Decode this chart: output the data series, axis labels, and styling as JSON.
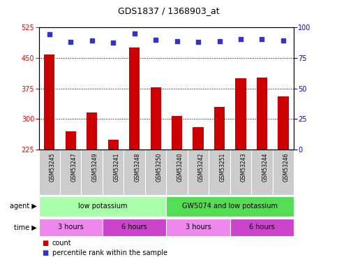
{
  "title": "GDS1837 / 1368903_at",
  "categories": [
    "GSM53245",
    "GSM53247",
    "GSM53249",
    "GSM53241",
    "GSM53248",
    "GSM53250",
    "GSM53240",
    "GSM53242",
    "GSM53251",
    "GSM53243",
    "GSM53244",
    "GSM53246"
  ],
  "bar_values": [
    458,
    270,
    315,
    248,
    475,
    378,
    308,
    280,
    330,
    400,
    402,
    355
  ],
  "percentile_values": [
    508,
    490,
    493,
    487,
    510,
    495,
    491,
    490,
    492,
    496,
    496,
    493
  ],
  "ylim_left": [
    225,
    525
  ],
  "ylim_right": [
    0,
    100
  ],
  "yticks_left": [
    225,
    300,
    375,
    450,
    525
  ],
  "yticks_right": [
    0,
    25,
    50,
    75,
    100
  ],
  "bar_color": "#cc0000",
  "dot_color": "#3333cc",
  "grid_lines": [
    300,
    375,
    450
  ],
  "agent_groups": [
    {
      "label": "low potassium",
      "start": 0,
      "end": 6,
      "color": "#aaffaa"
    },
    {
      "label": "GW5074 and low potassium",
      "start": 6,
      "end": 12,
      "color": "#55dd55"
    }
  ],
  "time_groups": [
    {
      "label": "3 hours",
      "start": 0,
      "end": 3,
      "color": "#ee88ee"
    },
    {
      "label": "6 hours",
      "start": 3,
      "end": 6,
      "color": "#cc44cc"
    },
    {
      "label": "3 hours",
      "start": 6,
      "end": 9,
      "color": "#ee88ee"
    },
    {
      "label": "6 hours",
      "start": 9,
      "end": 12,
      "color": "#cc44cc"
    }
  ],
  "agent_label": "agent",
  "time_label": "time",
  "legend_count_label": "count",
  "legend_percentile_label": "percentile rank within the sample",
  "tick_area_color": "#cccccc",
  "fig_width": 4.83,
  "fig_height": 3.75,
  "dpi": 100
}
